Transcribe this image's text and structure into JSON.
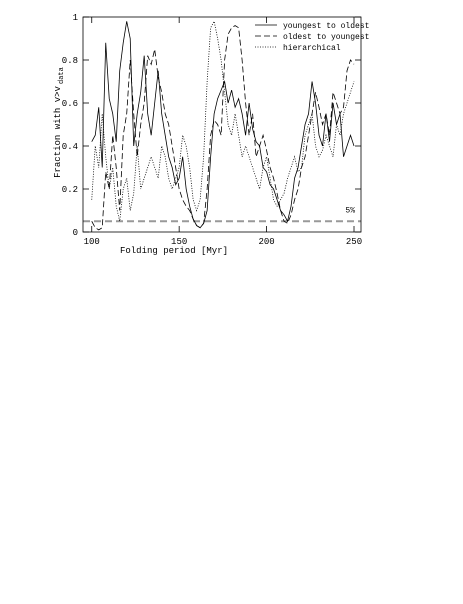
{
  "chart_data": {
    "type": "line",
    "xlabel": "Folding period [Myr]",
    "ylabel": "Fraction with v>v",
    "ylabel_sub": "data",
    "xlim": [
      95,
      254
    ],
    "ylim": [
      0,
      1
    ],
    "xticks": [
      100,
      150,
      200,
      250
    ],
    "yticks": [
      0,
      0.2,
      0.4,
      0.6,
      0.8,
      1
    ],
    "threshold": {
      "value": 0.05,
      "label": "5%",
      "color": "#999999"
    },
    "legend": "upper right",
    "x": [
      100,
      102,
      104,
      106,
      108,
      110,
      112,
      114,
      116,
      118,
      120,
      122,
      124,
      126,
      128,
      130,
      132,
      134,
      136,
      138,
      140,
      142,
      144,
      146,
      148,
      150,
      152,
      154,
      156,
      158,
      160,
      162,
      164,
      166,
      168,
      170,
      172,
      174,
      176,
      178,
      180,
      182,
      184,
      186,
      188,
      190,
      192,
      194,
      196,
      198,
      200,
      202,
      204,
      206,
      208,
      210,
      212,
      214,
      216,
      218,
      220,
      222,
      224,
      226,
      228,
      230,
      232,
      234,
      236,
      238,
      240,
      242,
      244,
      246,
      248,
      250
    ],
    "series": [
      {
        "name": "youngest to oldest",
        "color": "#000000",
        "dash": "solid",
        "values": [
          0.42,
          0.45,
          0.58,
          0.3,
          0.88,
          0.62,
          0.55,
          0.42,
          0.75,
          0.88,
          0.98,
          0.9,
          0.4,
          0.55,
          0.65,
          0.82,
          0.55,
          0.45,
          0.6,
          0.75,
          0.55,
          0.45,
          0.35,
          0.3,
          0.22,
          0.25,
          0.35,
          0.2,
          0.12,
          0.06,
          0.03,
          0.02,
          0.04,
          0.1,
          0.35,
          0.55,
          0.62,
          0.66,
          0.7,
          0.6,
          0.66,
          0.58,
          0.62,
          0.55,
          0.45,
          0.6,
          0.48,
          0.42,
          0.4,
          0.3,
          0.28,
          0.22,
          0.2,
          0.15,
          0.1,
          0.08,
          0.05,
          0.12,
          0.25,
          0.3,
          0.4,
          0.5,
          0.55,
          0.7,
          0.6,
          0.45,
          0.4,
          0.55,
          0.42,
          0.6,
          0.5,
          0.55,
          0.35,
          0.4,
          0.45,
          0.4
        ]
      },
      {
        "name": "oldest to youngest",
        "color": "#000000",
        "dash": "dashed",
        "values": [
          0.05,
          0.02,
          0.01,
          0.02,
          0.28,
          0.2,
          0.45,
          0.3,
          0.1,
          0.45,
          0.55,
          0.8,
          0.55,
          0.35,
          0.5,
          0.6,
          0.82,
          0.78,
          0.85,
          0.72,
          0.65,
          0.55,
          0.5,
          0.4,
          0.3,
          0.2,
          0.15,
          0.12,
          0.1,
          0.06,
          0.03,
          0.02,
          0.04,
          0.2,
          0.45,
          0.52,
          0.5,
          0.45,
          0.8,
          0.92,
          0.95,
          0.96,
          0.95,
          0.8,
          0.6,
          0.45,
          0.55,
          0.35,
          0.4,
          0.45,
          0.38,
          0.3,
          0.25,
          0.18,
          0.1,
          0.05,
          0.04,
          0.08,
          0.15,
          0.2,
          0.3,
          0.35,
          0.45,
          0.55,
          0.65,
          0.58,
          0.5,
          0.55,
          0.45,
          0.65,
          0.6,
          0.55,
          0.58,
          0.75,
          0.8,
          0.78
        ]
      },
      {
        "name": "hierarchical",
        "color": "#000000",
        "dash": "dotted",
        "values": [
          0.15,
          0.4,
          0.3,
          0.55,
          0.35,
          0.2,
          0.3,
          0.12,
          0.05,
          0.2,
          0.25,
          0.1,
          0.18,
          0.4,
          0.2,
          0.25,
          0.3,
          0.35,
          0.3,
          0.25,
          0.4,
          0.35,
          0.25,
          0.2,
          0.25,
          0.3,
          0.45,
          0.4,
          0.3,
          0.15,
          0.1,
          0.15,
          0.35,
          0.7,
          0.95,
          0.98,
          0.9,
          0.8,
          0.65,
          0.5,
          0.45,
          0.55,
          0.45,
          0.35,
          0.4,
          0.35,
          0.3,
          0.25,
          0.2,
          0.3,
          0.35,
          0.25,
          0.15,
          0.12,
          0.15,
          0.18,
          0.25,
          0.3,
          0.35,
          0.28,
          0.3,
          0.45,
          0.5,
          0.55,
          0.4,
          0.35,
          0.38,
          0.45,
          0.4,
          0.35,
          0.5,
          0.45,
          0.55,
          0.6,
          0.65,
          0.7
        ]
      }
    ]
  }
}
